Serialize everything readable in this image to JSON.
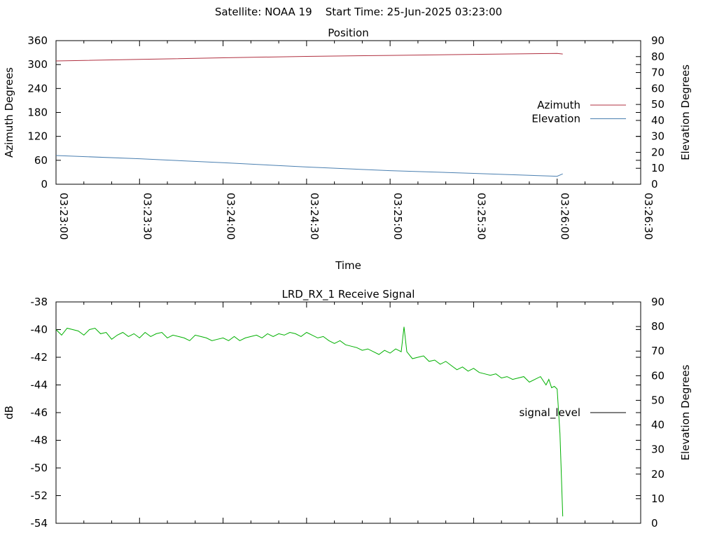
{
  "header": {
    "satellite_label": "Satellite: NOAA 19",
    "start_label": "Start Time: 25-Jun-2025 03:23:00"
  },
  "chart_data": [
    {
      "type": "line",
      "title": "Position",
      "xlabel": "Time",
      "ylabel": "Azimuth Degrees",
      "y2label": "Elevation Degrees",
      "x_ticks": [
        "03:23:00",
        "03:23:30",
        "03:24:00",
        "03:24:30",
        "03:25:00",
        "03:25:30",
        "03:26:00",
        "03:26:30"
      ],
      "xlim": [
        0,
        210
      ],
      "ylim": [
        0,
        360
      ],
      "y_ticks": [
        "0",
        "60",
        "120",
        "180",
        "240",
        "300",
        "360"
      ],
      "y2lim": [
        0,
        90
      ],
      "y2_ticks": [
        "0",
        "10",
        "20",
        "30",
        "40",
        "50",
        "60",
        "70",
        "80",
        "90"
      ],
      "legend_position": "right",
      "series": [
        {
          "name": "Azimuth",
          "axis": "left",
          "color": "#b03040",
          "x": [
            0,
            30,
            60,
            90,
            120,
            150,
            180,
            182
          ],
          "y": [
            309,
            313,
            317,
            320.5,
            323,
            325.5,
            328,
            326.5
          ]
        },
        {
          "name": "Elevation",
          "axis": "right",
          "color": "#4a7fb0",
          "x": [
            0,
            30,
            60,
            90,
            120,
            150,
            180,
            182
          ],
          "y": [
            18,
            16,
            13.5,
            10.8,
            8.5,
            6.8,
            5,
            6.5
          ]
        }
      ]
    },
    {
      "type": "line",
      "title": "LRD_RX_1 Receive Signal",
      "ylabel": "dB",
      "y2label": "Elevation Degrees",
      "xlim": [
        0,
        210
      ],
      "ylim": [
        -54,
        -38
      ],
      "y_ticks": [
        "-38",
        "-40",
        "-42",
        "-44",
        "-46",
        "-48",
        "-50",
        "-52",
        "-54"
      ],
      "y2lim": [
        0,
        90
      ],
      "y2_ticks": [
        "0",
        "10",
        "20",
        "30",
        "40",
        "50",
        "60",
        "70",
        "80",
        "90"
      ],
      "legend_position": "right",
      "series": [
        {
          "name": "signal_level",
          "color": "#00b000",
          "x": [
            0,
            2,
            4,
            6,
            8,
            10,
            12,
            14,
            16,
            18,
            20,
            22,
            24,
            26,
            28,
            30,
            32,
            34,
            36,
            38,
            40,
            42,
            44,
            46,
            48,
            50,
            52,
            54,
            56,
            58,
            60,
            62,
            64,
            66,
            68,
            70,
            72,
            74,
            76,
            78,
            80,
            82,
            84,
            86,
            88,
            90,
            92,
            94,
            96,
            98,
            100,
            102,
            104,
            106,
            108,
            110,
            112,
            114,
            116,
            118,
            120,
            122,
            124,
            125,
            126,
            128,
            130,
            132,
            134,
            136,
            138,
            140,
            142,
            144,
            146,
            148,
            150,
            152,
            154,
            156,
            158,
            160,
            162,
            164,
            166,
            168,
            170,
            172,
            174,
            176,
            177,
            178,
            179,
            180,
            181,
            182
          ],
          "y": [
            -40.0,
            -40.4,
            -39.9,
            -40.0,
            -40.1,
            -40.4,
            -40.0,
            -39.9,
            -40.3,
            -40.2,
            -40.7,
            -40.4,
            -40.2,
            -40.5,
            -40.3,
            -40.6,
            -40.2,
            -40.5,
            -40.3,
            -40.2,
            -40.6,
            -40.4,
            -40.5,
            -40.6,
            -40.8,
            -40.4,
            -40.5,
            -40.6,
            -40.8,
            -40.7,
            -40.6,
            -40.8,
            -40.5,
            -40.8,
            -40.6,
            -40.5,
            -40.4,
            -40.6,
            -40.3,
            -40.5,
            -40.3,
            -40.4,
            -40.2,
            -40.3,
            -40.5,
            -40.2,
            -40.4,
            -40.6,
            -40.5,
            -40.8,
            -41.0,
            -40.8,
            -41.1,
            -41.2,
            -41.3,
            -41.5,
            -41.4,
            -41.6,
            -41.8,
            -41.5,
            -41.7,
            -41.4,
            -41.6,
            -39.8,
            -41.6,
            -42.1,
            -42.0,
            -41.9,
            -42.3,
            -42.2,
            -42.5,
            -42.3,
            -42.6,
            -42.9,
            -42.7,
            -43.0,
            -42.8,
            -43.1,
            -43.2,
            -43.3,
            -43.2,
            -43.5,
            -43.4,
            -43.6,
            -43.5,
            -43.4,
            -43.8,
            -43.6,
            -43.4,
            -44.0,
            -43.6,
            -44.2,
            -44.1,
            -44.3,
            -47.5,
            -53.5
          ]
        }
      ]
    }
  ]
}
